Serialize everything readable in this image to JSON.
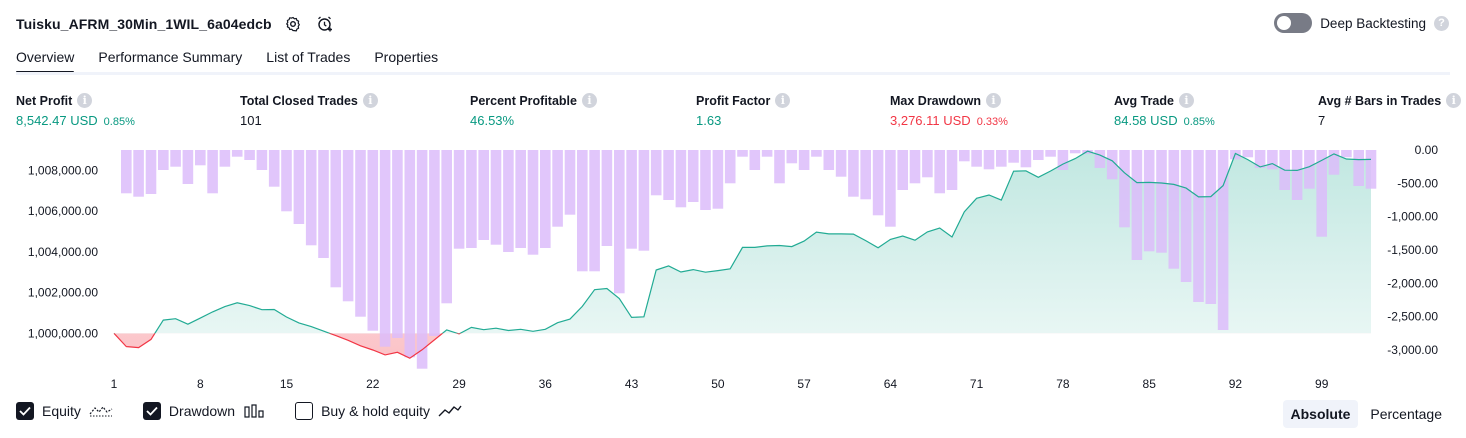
{
  "header": {
    "strategy_name": "Tuisku_AFRM_30Min_1WIL_6a04edcb",
    "deep_backtesting_label": "Deep Backtesting",
    "deep_backtesting_enabled": false
  },
  "tabs": [
    {
      "label": "Overview",
      "active": true
    },
    {
      "label": "Performance Summary",
      "active": false
    },
    {
      "label": "List of Trades",
      "active": false
    },
    {
      "label": "Properties",
      "active": false
    }
  ],
  "metrics": [
    {
      "label": "Net Profit",
      "value": "8,542.47 USD",
      "pct": "0.85%",
      "color": "green"
    },
    {
      "label": "Total Closed Trades",
      "value": "101",
      "pct": "",
      "color": "neutral"
    },
    {
      "label": "Percent Profitable",
      "value": "46.53%",
      "pct": "",
      "color": "green"
    },
    {
      "label": "Profit Factor",
      "value": "1.63",
      "pct": "",
      "color": "green"
    },
    {
      "label": "Max Drawdown",
      "value": "3,276.11 USD",
      "pct": "0.33%",
      "color": "red"
    },
    {
      "label": "Avg Trade",
      "value": "84.58 USD",
      "pct": "0.85%",
      "color": "green"
    },
    {
      "label": "Avg # Bars in Trades",
      "value": "7",
      "pct": "",
      "color": "neutral"
    }
  ],
  "colors": {
    "equity_line": "#22ab94",
    "equity_fill": "#dbf2ec",
    "negative_line": "#f23645",
    "negative_fill": "#fbd5d8",
    "drawdown_bar": "#dcbcfa",
    "overlap_bar": "#b1b7df",
    "text": "#131722",
    "green": "#089981",
    "red": "#f23645"
  },
  "chart_data": {
    "type": "line",
    "x_ticks": [
      "1",
      "8",
      "15",
      "22",
      "29",
      "36",
      "43",
      "50",
      "57",
      "64",
      "71",
      "78",
      "85",
      "92",
      "99"
    ],
    "left_axis": {
      "ticks": [
        "1,008,000.00",
        "1,006,000.00",
        "1,004,000.00",
        "1,002,000.00",
        "1,000,000.00"
      ],
      "tick_values": [
        1008000,
        1006000,
        1004000,
        1002000,
        1000000
      ],
      "range": [
        998200,
        1009000
      ],
      "baseline": 1000000
    },
    "right_axis": {
      "ticks": [
        "0.00",
        "-500.00",
        "-1,000.00",
        "-1,500.00",
        "-2,000.00",
        "-2,500.00",
        "-3,000.00"
      ],
      "tick_values": [
        0,
        -500,
        -1000,
        -1500,
        -2000,
        -2500,
        -3000
      ],
      "range": [
        -3300,
        0
      ]
    },
    "series": [
      {
        "name": "Equity",
        "type": "area",
        "values": [
          1000000,
          999350,
          999300,
          999700,
          1000650,
          1000720,
          1000450,
          1000750,
          1001050,
          1001310,
          1001500,
          1001360,
          1001160,
          1001170,
          1000800,
          1000510,
          1000330,
          1000110,
          999890,
          999660,
          999390,
          999180,
          998940,
          999070,
          998780,
          999190,
          999680,
          1000170,
          999970,
          1000290,
          1000180,
          1000250,
          1000140,
          1000200,
          1000100,
          1000200,
          1000520,
          1000700,
          1001320,
          1002140,
          1002200,
          1001710,
          1000780,
          1000810,
          1003110,
          1003310,
          1003010,
          1003130,
          1003000,
          1003080,
          1003170,
          1004220,
          1004220,
          1004290,
          1004310,
          1004260,
          1004530,
          1004970,
          1004880,
          1004880,
          1004870,
          1004550,
          1004200,
          1004610,
          1004780,
          1004570,
          1004980,
          1005170,
          1004730,
          1005960,
          1006630,
          1006790,
          1006540,
          1007960,
          1007980,
          1007660,
          1007970,
          1008310,
          1008580,
          1008940,
          1008750,
          1008470,
          1007880,
          1007400,
          1007410,
          1007380,
          1007310,
          1007130,
          1006700,
          1006710,
          1007250,
          1008830,
          1008530,
          1008170,
          1008330,
          1008010,
          1008000,
          1008180,
          1008490,
          1008810,
          1008560,
          1008530,
          1008540
        ]
      },
      {
        "name": "Drawdown",
        "type": "bar",
        "values": [
          0,
          -650,
          -700,
          -660,
          -300,
          -250,
          -510,
          -230,
          -650,
          -250,
          -100,
          -150,
          -300,
          -550,
          -920,
          -1110,
          -1430,
          -1620,
          -2060,
          -2270,
          -2500,
          -2710,
          -2950,
          -2820,
          -3110,
          -3280,
          -2790,
          -2300,
          -1480,
          -1470,
          -1350,
          -1420,
          -1530,
          -1470,
          -1570,
          -1470,
          -1150,
          -970,
          -1820,
          -1820,
          -1440,
          -2150,
          -1480,
          -1510,
          -680,
          -750,
          -860,
          -780,
          -900,
          -880,
          -500,
          -100,
          -300,
          -100,
          -500,
          -200,
          -300,
          -100,
          -300,
          -400,
          -700,
          -740,
          -980,
          -1150,
          -600,
          -500,
          -410,
          -650,
          -600,
          -170,
          -250,
          -290,
          -250,
          -190,
          -260,
          -150,
          -100,
          -300,
          -50,
          -60,
          -270,
          -440,
          -1160,
          -1650,
          -1520,
          -1540,
          -1780,
          -1980,
          -2280,
          -2310,
          -2700,
          -140,
          -110,
          -270,
          -290,
          -600,
          -750,
          -580,
          -1300,
          -370,
          -110,
          -540,
          -580
        ]
      }
    ],
    "xlabel": "",
    "ylabel": "",
    "grid": false
  },
  "legend": [
    {
      "label": "Equity",
      "checked": true,
      "icon": "equity-line-icon"
    },
    {
      "label": "Drawdown",
      "checked": true,
      "icon": "drawdown-bars-icon"
    },
    {
      "label": "Buy & hold equity",
      "checked": false,
      "icon": "buy-hold-line-icon"
    }
  ],
  "view_mode": [
    {
      "label": "Absolute",
      "active": true
    },
    {
      "label": "Percentage",
      "active": false
    }
  ]
}
